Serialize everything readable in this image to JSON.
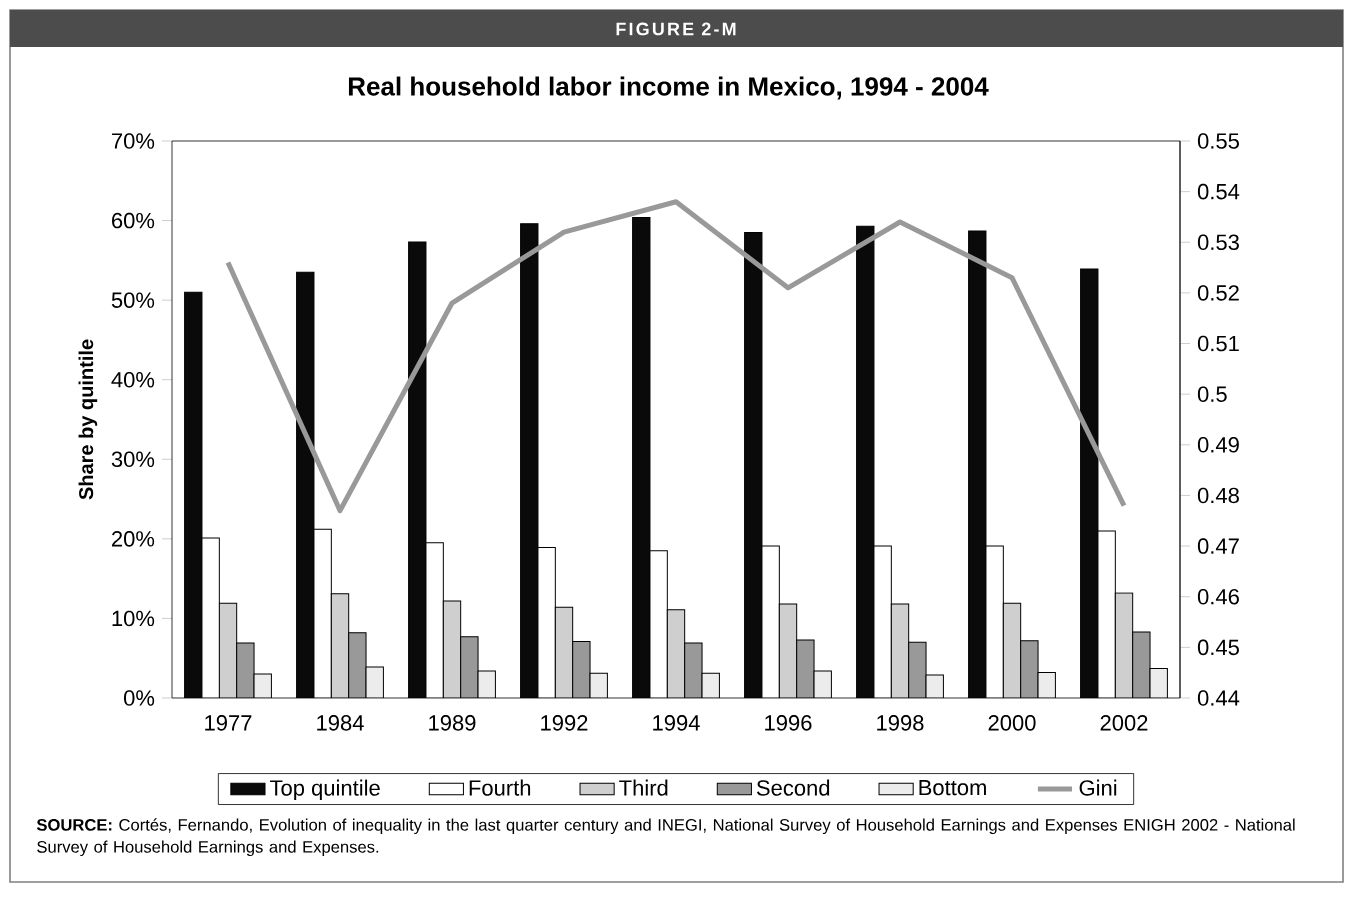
{
  "chart_data": {
    "type": "bar",
    "title": "Real household labor income in Mexico, 1994 - 2004",
    "ylabel": "Share by quintile",
    "categories": [
      "1977",
      "1984",
      "1989",
      "1992",
      "1994",
      "1996",
      "1998",
      "2000",
      "2002"
    ],
    "series": [
      {
        "name": "Top quintile",
        "color": "#0a0a0a",
        "values": [
          51.0,
          53.5,
          57.3,
          59.6,
          60.4,
          58.5,
          59.3,
          58.7,
          53.9
        ]
      },
      {
        "name": "Fourth",
        "color": "#ffffff",
        "values": [
          20.1,
          21.2,
          19.5,
          18.9,
          18.5,
          19.1,
          19.1,
          19.1,
          21.0
        ]
      },
      {
        "name": "Third",
        "color": "#cfcfcf",
        "values": [
          11.9,
          13.1,
          12.2,
          11.4,
          11.1,
          11.8,
          11.8,
          11.9,
          13.2
        ]
      },
      {
        "name": "Second",
        "color": "#999999",
        "values": [
          6.9,
          8.2,
          7.7,
          7.1,
          6.9,
          7.3,
          7.0,
          7.2,
          8.3
        ]
      },
      {
        "name": "Bottom",
        "color": "#ececec",
        "values": [
          3.0,
          3.9,
          3.4,
          3.1,
          3.1,
          3.4,
          2.9,
          3.2,
          3.7
        ]
      },
      {
        "name": "Gini",
        "type": "line",
        "axis": "y2",
        "color": "#999999",
        "values": [
          0.526,
          0.477,
          0.518,
          0.532,
          0.538,
          0.521,
          0.534,
          0.523,
          0.478
        ]
      }
    ],
    "ylim": [
      0,
      70
    ],
    "yticks": [
      {
        "value": 0,
        "label": "0%"
      },
      {
        "value": 10,
        "label": "10%"
      },
      {
        "value": 20,
        "label": "20%"
      },
      {
        "value": 30,
        "label": "30%"
      },
      {
        "value": 40,
        "label": "40%"
      },
      {
        "value": 50,
        "label": "50%"
      },
      {
        "value": 60,
        "label": "60%"
      },
      {
        "value": 70,
        "label": "70%"
      }
    ],
    "y2lim": [
      0.44,
      0.55
    ],
    "y2ticks": [
      0.44,
      0.45,
      0.46,
      0.47,
      0.48,
      0.49,
      0.5,
      0.51,
      0.52,
      0.53,
      0.54,
      0.55
    ],
    "legend": "bottom",
    "annotations": [
      "FIGURE 2-M",
      "**SOURCE:** Cortés, Fernando, Evolution of inequality in the last quarter century and INEGI, National Survey of Household Earnings and Expenses ENIGH 2002 - National Survey of Household Earnings and Expenses."
    ]
  }
}
